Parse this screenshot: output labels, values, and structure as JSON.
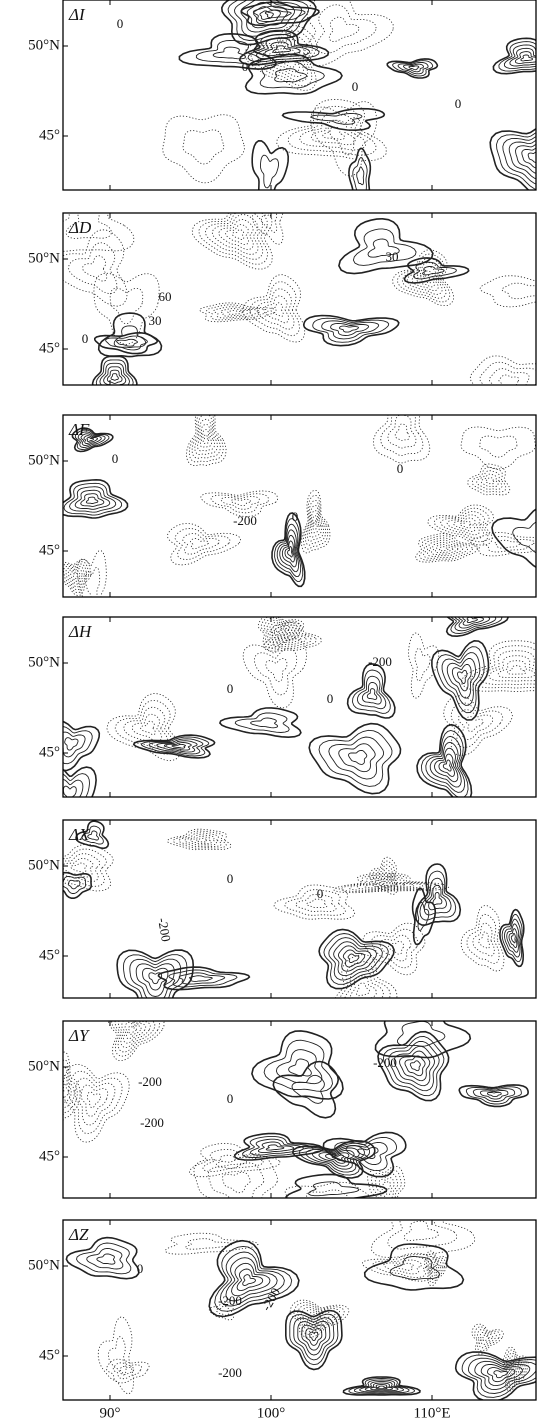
{
  "panels": [
    {
      "label": "ΔI",
      "annotations": [
        "0",
        "0",
        "0",
        "0"
      ]
    },
    {
      "label": "ΔD",
      "annotations": [
        "60",
        "30",
        "30",
        "0"
      ]
    },
    {
      "label": "ΔF",
      "annotations": [
        "0",
        "-200",
        "0",
        "0"
      ]
    },
    {
      "label": "ΔH",
      "annotations": [
        "-200",
        "0",
        "0"
      ]
    },
    {
      "label": "ΔX",
      "annotations": [
        "-200",
        "0",
        "0"
      ]
    },
    {
      "label": "ΔY",
      "annotations": [
        "-200",
        "-200",
        "-200",
        "0"
      ]
    },
    {
      "label": "ΔZ",
      "annotations": [
        "-200",
        "-200",
        "-200",
        "0"
      ]
    }
  ],
  "y_axis_labels": [
    "50°N",
    "45°"
  ],
  "x_axis_labels": [
    "90°",
    "100°",
    "110°E"
  ]
}
